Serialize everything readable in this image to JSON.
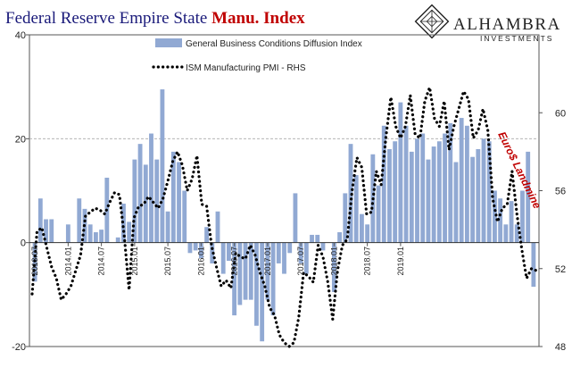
{
  "header": {
    "title_main": "Federal Reserve Empire State ",
    "title_accent": "Manu. Index"
  },
  "brand": {
    "name": "ALHAMBRA",
    "sub": "INVESTMENTS"
  },
  "chart_data": {
    "type": "bar",
    "ylim_left": [
      -20,
      40
    ],
    "yticks_left": [
      "40",
      "20",
      "0",
      "-20"
    ],
    "ylim_right": [
      48,
      64
    ],
    "yticks_right": [
      "60",
      "56",
      "52",
      "48"
    ],
    "grid": "dashed gridline at 20",
    "legend_position": "top-center",
    "x_tick_labels": [
      "2013.07",
      "2014.01",
      "2014.07",
      "2015.01",
      "2015.07",
      "2016.01",
      "2016.07",
      "2017.01",
      "2017.07",
      "2018.01",
      "2018.07",
      "2019.01"
    ],
    "annotation": "Euro$ Landmine",
    "series": [
      {
        "name": "General Business Conditions Diffusion Index",
        "style": "bars",
        "color": "#91a9d3",
        "axis": "left",
        "values": [
          -7.5,
          8.5,
          4.5,
          4.5,
          0,
          0,
          3.5,
          0,
          8.5,
          6.5,
          3.5,
          2,
          2.5,
          12.5,
          0,
          1,
          7.5,
          4,
          16,
          19,
          15,
          21,
          16,
          29.5,
          6,
          17.5,
          15.5,
          10,
          -2,
          -1.5,
          -3,
          3,
          -4,
          6,
          -6,
          -3.5,
          -14,
          -12,
          -11,
          -11,
          -16,
          -19,
          -11,
          -14,
          -4,
          -6,
          -2,
          9.5,
          -4,
          -6,
          1.5,
          1.5,
          -1.5,
          0,
          -9.5,
          2,
          9.5,
          19,
          13,
          5.5,
          3.5,
          17,
          11,
          22.5,
          18,
          19.5,
          27,
          22.5,
          17.5,
          20,
          21,
          16,
          18.5,
          19.5,
          21,
          23,
          15.5,
          24,
          22.5,
          16.5,
          18,
          20,
          19.5,
          10,
          8.5,
          3.5,
          8,
          3.5,
          10,
          17.5,
          -8.5
        ]
      },
      {
        "name": "ISM Manufacturing PMI - RHS",
        "style": "dotted-line",
        "color": "#000000",
        "axis": "right",
        "values": [
          50.7,
          53.9,
          54.1,
          53.1,
          52.1,
          51.5,
          50.4,
          50.7,
          51.1,
          51.9,
          52.7,
          54.7,
          54.9,
          55.1,
          55.0,
          54.8,
          55.4,
          55.9,
          55.8,
          53.7,
          50.9,
          54.6,
          55.2,
          55.3,
          55.7,
          55.4,
          55.1,
          55.6,
          56.5,
          57.5,
          58.0,
          57.3,
          56.0,
          56.6,
          57.8,
          55.3,
          55.2,
          53.2,
          52.1,
          51.1,
          51.4,
          51.0,
          52.8,
          52.6,
          52.5,
          53.2,
          52.7,
          51.8,
          51.1,
          50.0,
          49.6,
          48.6,
          48.2,
          48.0,
          48.2,
          49.5,
          51.8,
          51.6,
          51.3,
          53.2,
          52.6,
          51.3,
          49.4,
          51.9,
          53.2,
          53.5,
          56.0,
          57.7,
          57.2,
          54.8,
          54.9,
          57.0,
          56.3,
          58.8,
          60.8,
          59.3,
          58.7,
          59.3,
          60.9,
          58.9,
          58.7,
          60.6,
          61.3,
          59.7,
          59.3,
          60.6,
          58.1,
          59.3,
          60.2,
          61.1,
          60.7,
          58.7,
          59.1,
          60.2,
          59.1,
          55.6,
          54.4,
          55.1,
          55.3,
          57.0,
          54.8,
          53.0,
          51.5,
          52.0,
          51.9
        ]
      }
    ]
  }
}
